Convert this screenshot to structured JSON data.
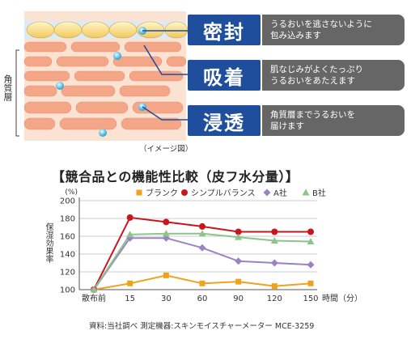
{
  "diagram": {
    "side_label": "角質層",
    "image_note": "（イメージ図）",
    "features": [
      {
        "label": "密封",
        "desc": [
          "うるおいを逃さないように",
          "包み込みます"
        ]
      },
      {
        "label": "吸着",
        "desc": [
          "肌なじみがよくたっぷり",
          "うるおいをあたえます"
        ]
      },
      {
        "label": "浸透",
        "desc": [
          "角質層までうるおいを",
          "届けます"
        ]
      }
    ]
  },
  "chart_title": "【競合品との機能性比較（皮フ水分量）】",
  "source_note": "資料:当社調べ  測定機器:スキンモイスチャーメーター  MCE-3259",
  "chart_data": {
    "type": "line",
    "categories": [
      "散布前",
      "15",
      "30",
      "60",
      "90",
      "120",
      "150"
    ],
    "x_unit_label": "時間（分）",
    "y_unit_label": "(%)",
    "ylabel": "保湿効果率",
    "ylim": [
      100,
      200
    ],
    "yticks": [
      100,
      120,
      140,
      160,
      180,
      200
    ],
    "grid": true,
    "legend_position": "top",
    "series": [
      {
        "name": "ブランク",
        "marker": "square",
        "color": "#f0a21c",
        "values": [
          100,
          107,
          116,
          107,
          109,
          104,
          107
        ]
      },
      {
        "name": "シンプルバランス",
        "marker": "circle",
        "color": "#c8161d",
        "values": [
          100,
          181,
          176,
          171,
          165,
          165,
          165
        ]
      },
      {
        "name": "A社",
        "marker": "diamond",
        "color": "#9b82c4",
        "values": [
          100,
          158,
          158,
          147,
          132,
          130,
          128
        ]
      },
      {
        "name": "B社",
        "marker": "triangle",
        "color": "#8cc48c",
        "values": [
          100,
          162,
          163,
          163,
          159,
          155,
          154
        ]
      }
    ]
  }
}
